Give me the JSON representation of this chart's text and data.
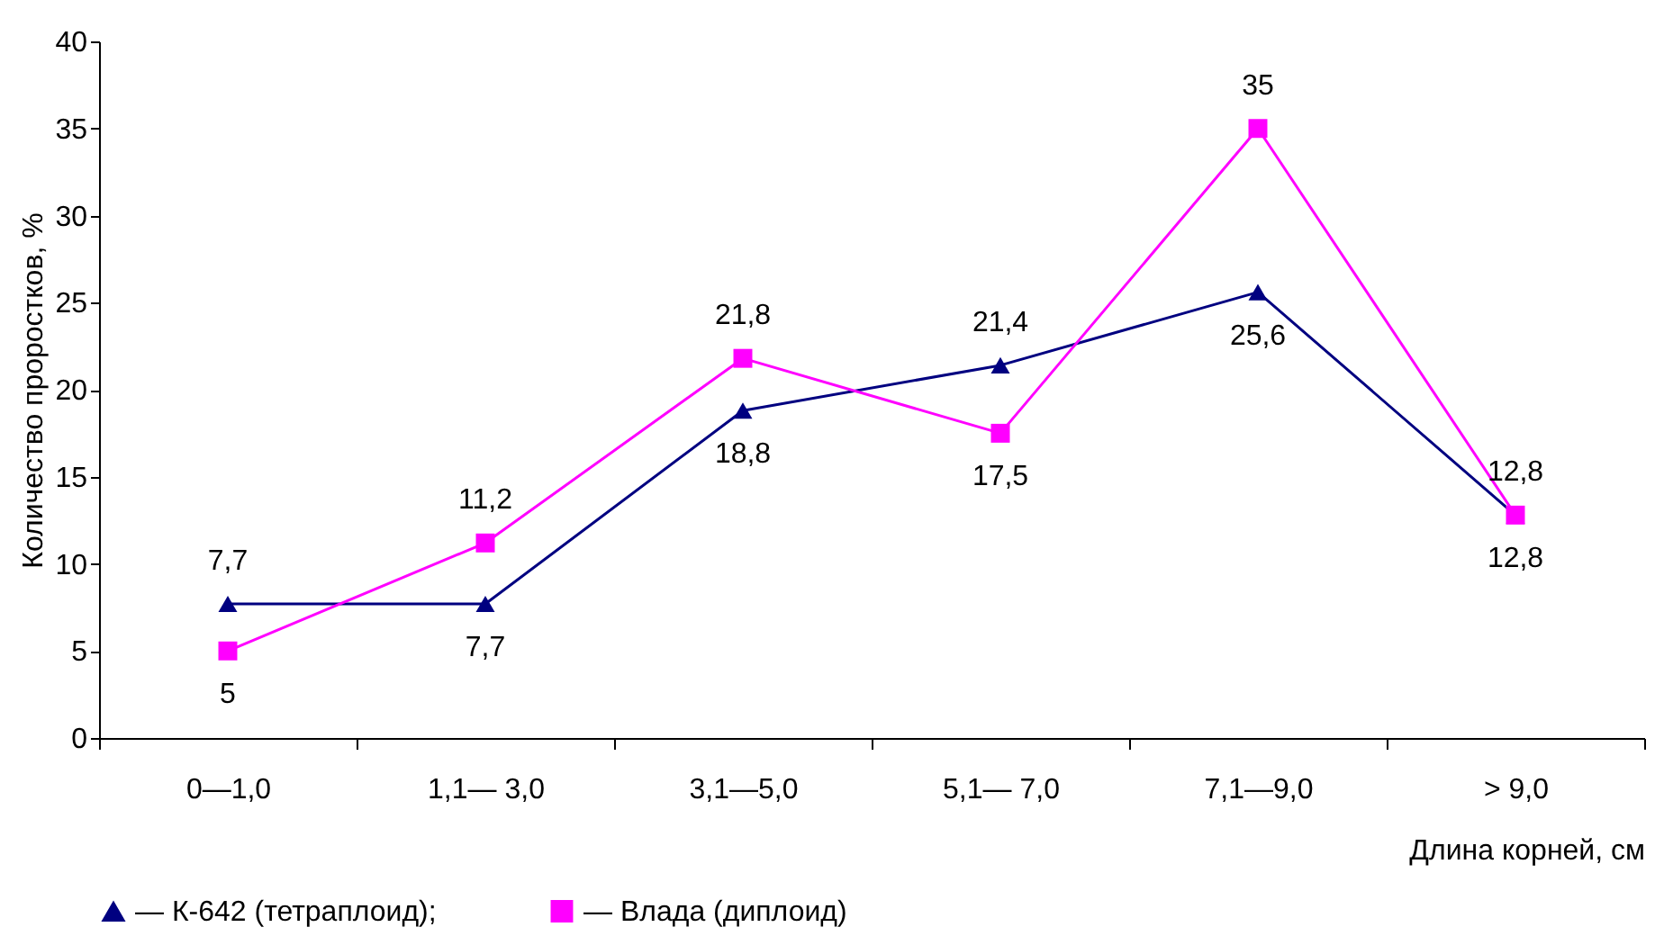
{
  "chart_data": {
    "type": "line",
    "xlabel": "Длина корней, см",
    "ylabel": "Количество проростков, %",
    "categories": [
      "0—1,0",
      "1,1— 3,0",
      "3,1—5,0",
      "5,1— 7,0",
      "7,1—9,0",
      "> 9,0"
    ],
    "ylim": [
      0,
      40
    ],
    "yticks": [
      0,
      5,
      10,
      15,
      20,
      25,
      30,
      35,
      40
    ],
    "grid": false,
    "legend": "bottom",
    "series": [
      {
        "name": "— К-642 (тетраплоид);",
        "color": "#000080",
        "marker": "triangle",
        "values": [
          7.7,
          7.7,
          18.8,
          21.4,
          25.6,
          12.8
        ],
        "value_labels": [
          "7,7",
          "7,7",
          "18,8",
          "21,4",
          "25,6",
          "12,8"
        ]
      },
      {
        "name": "— Влада (диплоид)",
        "color": "#ff00ff",
        "marker": "square",
        "values": [
          5,
          11.2,
          21.8,
          17.5,
          35,
          12.8
        ],
        "value_labels": [
          "5",
          "11,2",
          "21,8",
          "17,5",
          "35",
          "12,8"
        ]
      }
    ]
  }
}
